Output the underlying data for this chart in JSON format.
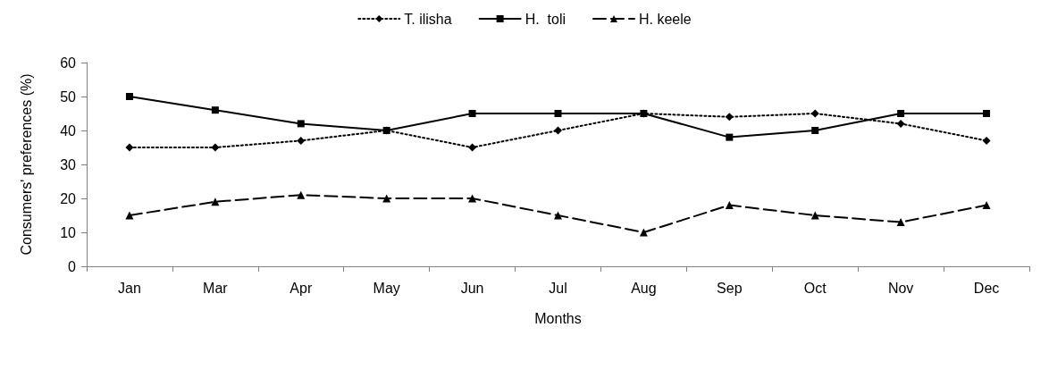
{
  "chart_data": {
    "type": "line",
    "xlabel": "Months",
    "ylabel": "Consumers' preferences (%)",
    "categories": [
      "Jan",
      "Mar",
      "Apr",
      "May",
      "Jun",
      "Jul",
      "Aug",
      "Sep",
      "Oct",
      "Nov",
      "Dec"
    ],
    "series": [
      {
        "name": "T. ilisha",
        "color": "#000000",
        "marker": "diamond",
        "line_style": "dotted",
        "values": [
          35,
          35,
          37,
          40,
          35,
          40,
          45,
          44,
          45,
          42,
          37
        ]
      },
      {
        "name": "H.  toli",
        "color": "#000000",
        "marker": "square",
        "line_style": "solid",
        "values": [
          50,
          46,
          42,
          40,
          45,
          45,
          45,
          38,
          40,
          45,
          45
        ]
      },
      {
        "name": "H. keele",
        "color": "#000000",
        "marker": "triangle",
        "line_style": "dashed",
        "values": [
          15,
          19,
          21,
          20,
          20,
          15,
          10,
          18,
          15,
          13,
          18
        ]
      }
    ],
    "ylim": [
      0,
      60
    ],
    "yticks": [
      0,
      10,
      20,
      30,
      40,
      50,
      60
    ],
    "grid": false,
    "legend": "top"
  }
}
